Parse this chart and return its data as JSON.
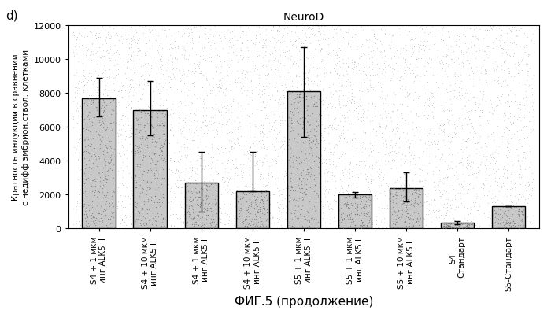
{
  "title": "NeuroD",
  "xlabel": "ФИГ.5 (продолжение)",
  "ylabel_line1": "Кратность индукции в сравнении",
  "ylabel_line2": "с недифф эмбрион.ствол. клетками",
  "panel_label": "d)",
  "categories": [
    "S4 + 1 мкм\nинг ALK5 II",
    "S4 + 10 мкм\nинг ALK5 II",
    "S4 + 1 мкм\nинг ALK5 I",
    "S4 + 10 мкм\nинг ALK5 I",
    "S5 + 1 мкм\nинг ALK5 II",
    "S5 + 1 мкм\nинг ALK5 I",
    "S5 + 10 мкм\nинг ALK5 I",
    "S4-\nСтандарт",
    "S5-Стандарт"
  ],
  "values": [
    7700,
    7000,
    2700,
    2200,
    8100,
    2000,
    2400,
    350,
    1300
  ],
  "errors_upper": [
    1200,
    1700,
    1800,
    2300,
    2600,
    150,
    900,
    80,
    0
  ],
  "errors_lower": [
    1100,
    1500,
    1700,
    0,
    2700,
    150,
    800,
    80,
    0
  ],
  "bar_color": "#c8c8c8",
  "bar_edgecolor": "#000000",
  "ylim": [
    0,
    12000
  ],
  "yticks": [
    0,
    2000,
    4000,
    6000,
    8000,
    10000,
    12000
  ],
  "bg_color": "#ffffff",
  "title_fontsize": 10,
  "axis_label_fontsize": 7.5,
  "tick_fontsize": 8,
  "xlabel_fontsize": 11
}
